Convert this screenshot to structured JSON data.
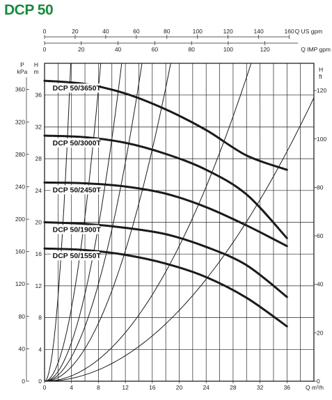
{
  "title": "DCP 50",
  "chart_data": {
    "type": "line",
    "title": "DCP 50",
    "xlabel": "Q m³/h",
    "ylabel_left_m": "H m",
    "ylabel_left_kpa": [
      "P",
      "kPa"
    ],
    "ylabel_right_ft": "H ft",
    "top_axis_us": "Q US gpm",
    "top_axis_imp": "Q IMP gpm",
    "xlim": [
      0,
      40
    ],
    "ylim": [
      0,
      40
    ],
    "grid": true,
    "x_ticks": [
      0,
      4,
      8,
      12,
      16,
      20,
      24,
      28,
      32,
      36
    ],
    "h_m_ticks": [
      0,
      4,
      8,
      12,
      16,
      20,
      24,
      28,
      32,
      36
    ],
    "p_kpa_ticks": [
      0,
      40,
      80,
      120,
      160,
      200,
      240,
      280,
      320,
      360
    ],
    "h_ft_ticks": [
      0,
      20,
      40,
      60,
      80,
      100,
      120
    ],
    "us_gpm_ticks": [
      0,
      20,
      40,
      60,
      80,
      100,
      120,
      140,
      160
    ],
    "imp_gpm_ticks": [
      0,
      20,
      40,
      60,
      80,
      100,
      120
    ],
    "series": [
      {
        "name": "DCP 50/3650T",
        "x": [
          0,
          6,
          12,
          18,
          24,
          30,
          36
        ],
        "y": [
          37.8,
          37.4,
          36.2,
          34.2,
          31.6,
          28.4,
          26.6
        ]
      },
      {
        "name": "DCP 50/3000T",
        "x": [
          0,
          6,
          12,
          18,
          24,
          30,
          36
        ],
        "y": [
          30.9,
          30.7,
          30.0,
          28.6,
          26.6,
          23.5,
          18.0
        ]
      },
      {
        "name": "DCP 50/2450T",
        "x": [
          0,
          6,
          12,
          18,
          24,
          30,
          36
        ],
        "y": [
          25.0,
          24.9,
          24.5,
          23.6,
          21.9,
          19.6,
          17.0
        ]
      },
      {
        "name": "DCP 50/1900T",
        "x": [
          0,
          6,
          12,
          18,
          24,
          30,
          36
        ],
        "y": [
          20.0,
          19.8,
          19.3,
          18.5,
          16.9,
          14.6,
          10.6
        ]
      },
      {
        "name": "DCP 50/1550T",
        "x": [
          0,
          6,
          12,
          18,
          24,
          30,
          36
        ],
        "y": [
          16.7,
          16.5,
          15.9,
          14.8,
          13.1,
          10.5,
          6.9
        ]
      }
    ],
    "system_curves_k": [
      2.65,
      0.575,
      0.305,
      0.191,
      0.114,
      0.0425,
      0.0223
    ]
  }
}
